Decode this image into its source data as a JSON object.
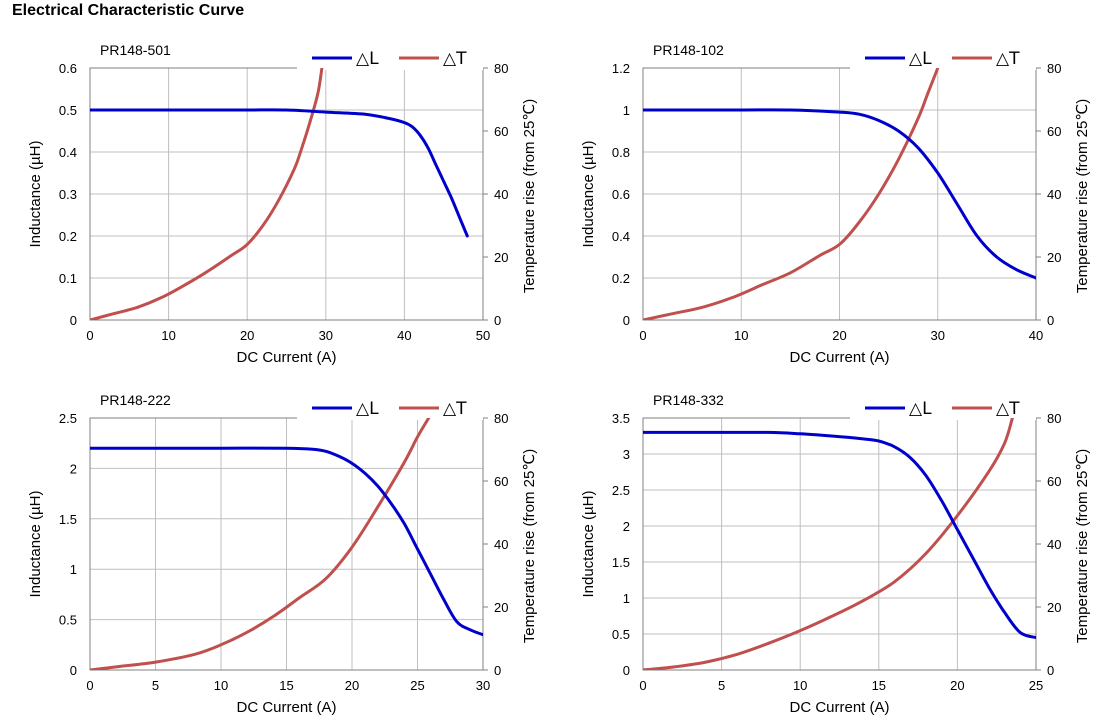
{
  "page": {
    "title": "Electrical Characteristic Curve"
  },
  "colors": {
    "inductance": "#0000CC",
    "temperature": "#C0504D",
    "grid": "#BFBFBF",
    "axis": "#808080"
  },
  "chart_data": [
    {
      "type": "line",
      "part_label": "PR148-501",
      "xlabel": "DC Current (A)",
      "ylabel": "Inductance (µH)",
      "y2label": "Temperature rise (from 25℃)",
      "xlim": [
        0,
        50
      ],
      "ylim": [
        0,
        0.6
      ],
      "y2lim": [
        0,
        80
      ],
      "xticks": [
        "0",
        "10",
        "20",
        "30",
        "40",
        "50"
      ],
      "yticks": [
        "0",
        "0.1",
        "0.2",
        "0.3",
        "0.4",
        "0.5",
        "0.6"
      ],
      "y2ticks": [
        "0",
        "20",
        "40",
        "60",
        "80"
      ],
      "grid": true,
      "legend": "top-right",
      "series": [
        {
          "name": "△L",
          "axis": "left",
          "x": [
            0,
            5,
            10,
            15,
            20,
            25,
            30,
            35,
            38,
            40,
            41,
            42,
            43,
            44,
            45,
            46,
            47,
            48
          ],
          "y": [
            0.5,
            0.5,
            0.5,
            0.5,
            0.5,
            0.5,
            0.495,
            0.49,
            0.48,
            0.47,
            0.46,
            0.44,
            0.41,
            0.37,
            0.33,
            0.29,
            0.245,
            0.2
          ]
        },
        {
          "name": "△T",
          "axis": "right",
          "x": [
            0,
            3,
            6,
            9,
            12,
            15,
            18,
            20,
            22,
            24,
            26,
            27,
            28,
            29,
            29.5
          ],
          "y": [
            0,
            2,
            4,
            7,
            11,
            15.5,
            20.5,
            24,
            30,
            38,
            48,
            55,
            63,
            72,
            80
          ]
        }
      ]
    },
    {
      "type": "line",
      "part_label": "PR148-102",
      "xlabel": "DC Current (A)",
      "ylabel": "Inductance (µH)",
      "y2label": "Temperature rise (from 25℃)",
      "xlim": [
        0,
        40
      ],
      "ylim": [
        0,
        1.2
      ],
      "y2lim": [
        0,
        80
      ],
      "xticks": [
        "0",
        "10",
        "20",
        "30",
        "40"
      ],
      "yticks": [
        "0",
        "0.2",
        "0.4",
        "0.6",
        "0.8",
        "1",
        "1.2"
      ],
      "y2ticks": [
        "0",
        "20",
        "40",
        "60",
        "80"
      ],
      "grid": true,
      "legend": "top-right",
      "series": [
        {
          "name": "△L",
          "axis": "left",
          "x": [
            0,
            5,
            10,
            15,
            20,
            22,
            24,
            26,
            28,
            30,
            32,
            34,
            36,
            38,
            40
          ],
          "y": [
            1.0,
            1.0,
            1.0,
            1.0,
            0.99,
            0.98,
            0.95,
            0.9,
            0.82,
            0.7,
            0.55,
            0.4,
            0.3,
            0.24,
            0.2
          ]
        },
        {
          "name": "△T",
          "axis": "right",
          "x": [
            0,
            3,
            6,
            9,
            12,
            15,
            18,
            20,
            22,
            24,
            26,
            28,
            29,
            30
          ],
          "y": [
            0,
            2,
            4,
            7,
            11,
            15,
            20.5,
            24,
            31,
            40,
            51,
            64,
            72,
            80
          ]
        }
      ]
    },
    {
      "type": "line",
      "part_label": "PR148-222",
      "xlabel": "DC Current (A)",
      "ylabel": "Inductance (µH)",
      "y2label": "Temperature rise (from 25℃)",
      "xlim": [
        0,
        30
      ],
      "ylim": [
        0,
        2.5
      ],
      "y2lim": [
        0,
        80
      ],
      "xticks": [
        "0",
        "5",
        "10",
        "15",
        "20",
        "25",
        "30"
      ],
      "yticks": [
        "0",
        "0.5",
        "1",
        "1.5",
        "2",
        "2.5"
      ],
      "y2ticks": [
        "0",
        "20",
        "40",
        "60",
        "80"
      ],
      "grid": true,
      "legend": "top-right",
      "series": [
        {
          "name": "△L",
          "axis": "left",
          "x": [
            0,
            5,
            10,
            15,
            17,
            18,
            19,
            20,
            21,
            22,
            23,
            24,
            25,
            26,
            27,
            28,
            29,
            30
          ],
          "y": [
            2.2,
            2.2,
            2.2,
            2.2,
            2.19,
            2.17,
            2.12,
            2.05,
            1.95,
            1.82,
            1.65,
            1.45,
            1.2,
            0.95,
            0.7,
            0.48,
            0.4,
            0.35
          ]
        },
        {
          "name": "△T",
          "axis": "right",
          "x": [
            0,
            2,
            5,
            8,
            10,
            12,
            14,
            16,
            18,
            20,
            22,
            24,
            25,
            26
          ],
          "y": [
            0,
            1,
            2.5,
            5,
            8,
            12,
            17,
            23,
            29,
            39,
            52,
            66,
            74,
            81
          ]
        }
      ]
    },
    {
      "type": "line",
      "part_label": "PR148-332",
      "xlabel": "DC Current (A)",
      "ylabel": "Inductance (µH)",
      "y2label": "Temperature rise (from 25℃)",
      "xlim": [
        0,
        25
      ],
      "ylim": [
        0,
        3.5
      ],
      "y2lim": [
        0,
        80
      ],
      "xticks": [
        "0",
        "5",
        "10",
        "15",
        "20",
        "25"
      ],
      "yticks": [
        "0",
        "0.5",
        "1",
        "1.5",
        "2",
        "2.5",
        "3",
        "3.5"
      ],
      "y2ticks": [
        "0",
        "20",
        "40",
        "60",
        "80"
      ],
      "grid": true,
      "legend": "top-right",
      "series": [
        {
          "name": "△L",
          "axis": "left",
          "x": [
            0,
            5,
            8,
            10,
            12,
            14,
            15,
            16,
            17,
            18,
            19,
            20,
            21,
            22,
            23,
            24,
            25
          ],
          "y": [
            3.3,
            3.3,
            3.3,
            3.28,
            3.25,
            3.21,
            3.18,
            3.1,
            2.95,
            2.7,
            2.35,
            1.95,
            1.55,
            1.15,
            0.8,
            0.52,
            0.45
          ]
        },
        {
          "name": "△T",
          "axis": "right",
          "x": [
            0,
            2,
            4,
            6,
            8,
            10,
            12,
            14,
            16,
            18,
            20,
            22,
            23,
            23.5
          ],
          "y": [
            0,
            1,
            2.5,
            5,
            8.5,
            12.5,
            17,
            22,
            28,
            37,
            49,
            63,
            72,
            80
          ]
        }
      ]
    }
  ]
}
